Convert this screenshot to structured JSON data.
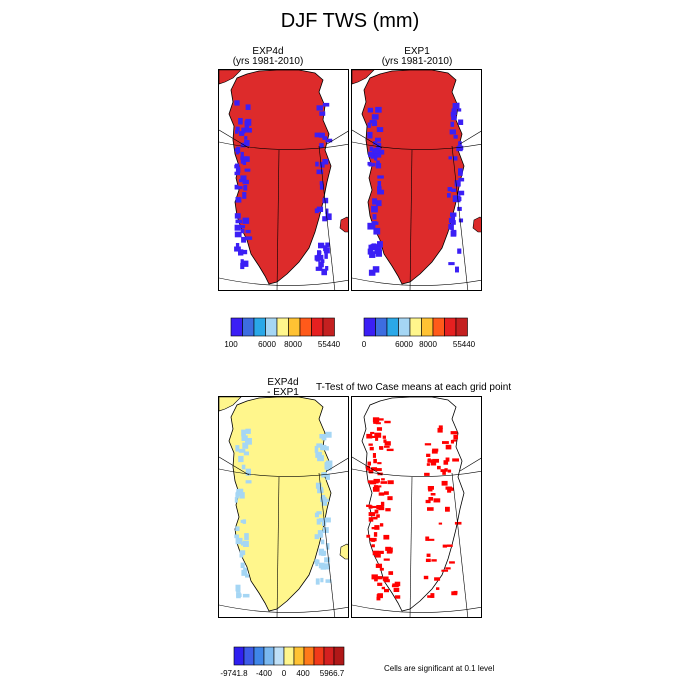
{
  "figure": {
    "title": "DJF TWS (mm)",
    "note": "Cells are significant at 0.1 level",
    "ttest_title": "T-Test of two Case means at each grid point"
  },
  "colors": {
    "ocean": "#ffffff",
    "frame": "#000000",
    "ttest_fill": "#ff0000"
  },
  "chart_data": [
    {
      "type": "heatmap",
      "title": "EXP4d",
      "subtitle": "(yrs 1981-2010)",
      "dominant_color": "#dd2b2b",
      "edge_color": "#3b1ff5",
      "colorbar": {
        "colors": [
          "#3b1ff5",
          "#3d6de0",
          "#2aa8e8",
          "#a5d6f4",
          "#fff68c",
          "#ffc233",
          "#ff5a1a",
          "#e62020",
          "#c42020"
        ],
        "tick_labels": [
          "100",
          "6000",
          "8000",
          "55440"
        ]
      }
    },
    {
      "type": "heatmap",
      "title": "EXP1",
      "subtitle": "(yrs 1981-2010)",
      "dominant_color": "#dd2b2b",
      "edge_color": "#3b1ff5",
      "colorbar": {
        "colors": [
          "#3b1ff5",
          "#3d6de0",
          "#2aa8e8",
          "#a5d6f4",
          "#fff68c",
          "#ffc233",
          "#ff5a1a",
          "#e62020",
          "#c42020"
        ],
        "tick_labels": [
          "0",
          "6000",
          "8000",
          "55440"
        ]
      }
    },
    {
      "type": "heatmap",
      "title": "EXP4d",
      "subtitle": "- EXP1",
      "dominant_color": "#fff68c",
      "edge_color": "#a5d6f4",
      "colorbar": {
        "colors": [
          "#2f1ff0",
          "#3d5be8",
          "#3f86e8",
          "#7ab8ef",
          "#bfe0f7",
          "#fff68c",
          "#ffc233",
          "#ff7a1a",
          "#f23a1a",
          "#d42020",
          "#b01818"
        ],
        "tick_labels": [
          "-9741.8",
          "-400",
          "0",
          "400",
          "5966.7"
        ]
      }
    }
  ]
}
